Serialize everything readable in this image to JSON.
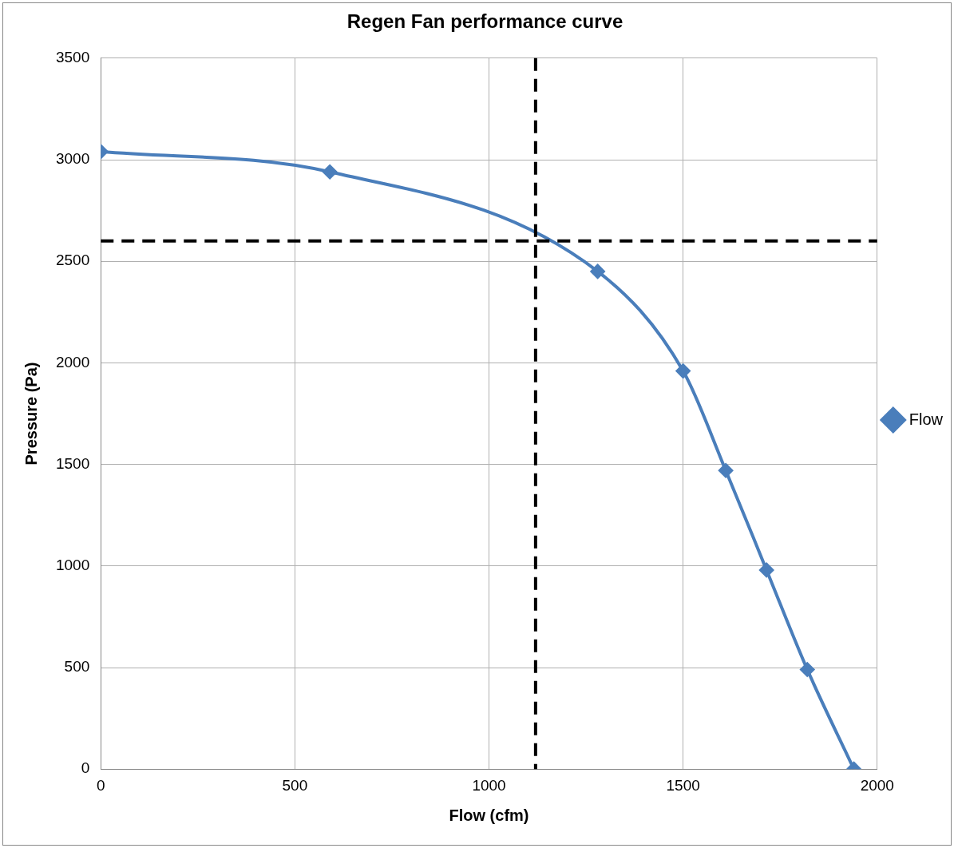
{
  "chart_data": {
    "type": "line",
    "title": "Regen Fan performance curve",
    "xlabel": "Flow (cfm)",
    "ylabel": "Pressure (Pa)",
    "x": [
      0,
      590,
      1280,
      1500,
      1610,
      1715,
      1820,
      1940
    ],
    "series": [
      {
        "name": "Flow",
        "color": "#4a7ebb",
        "values": [
          3040,
          2940,
          2450,
          1960,
          1470,
          980,
          490,
          0
        ]
      }
    ],
    "xlim": [
      0,
      2000
    ],
    "xticks": [
      0,
      500,
      1000,
      1500,
      2000
    ],
    "ylim": [
      0,
      3500
    ],
    "yticks": [
      0,
      500,
      1000,
      1500,
      2000,
      2500,
      3000,
      3500
    ],
    "grid": true,
    "legend": "right",
    "marker": "diamond",
    "line_style": "solid",
    "ref_lines": [
      {
        "axis": "y",
        "value": 2600,
        "color": "#000000",
        "line_style": "dashed"
      },
      {
        "axis": "x",
        "value": 1120,
        "color": "#000000",
        "line_style": "dashed"
      }
    ]
  }
}
